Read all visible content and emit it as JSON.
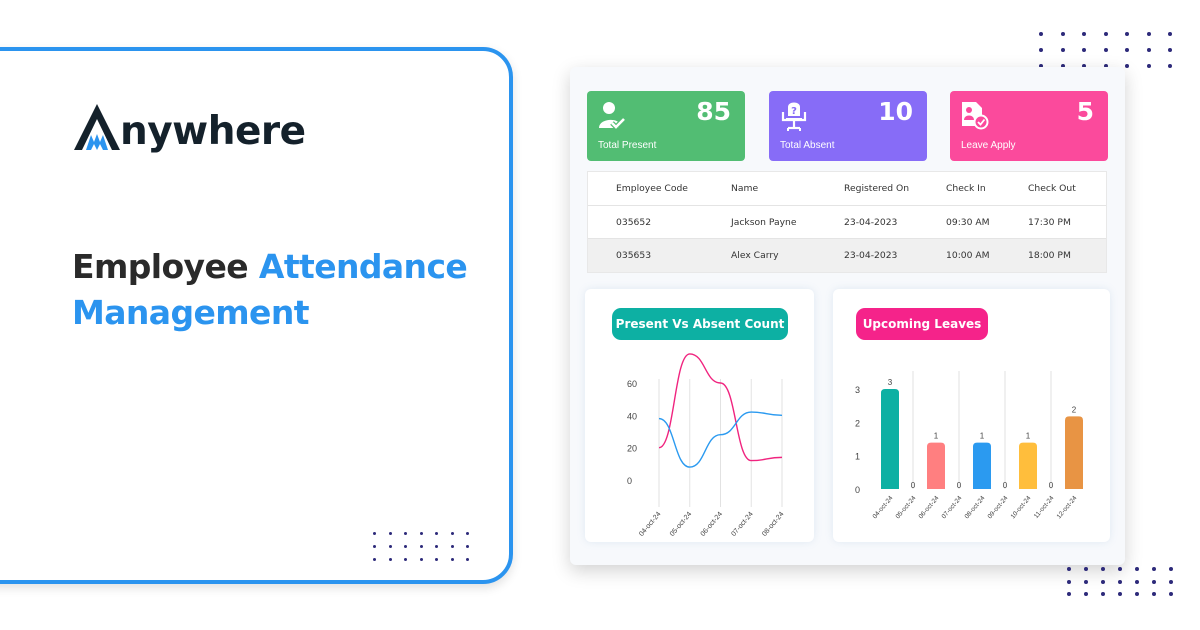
{
  "brand": {
    "logo_text": "nywhere",
    "logo_full": "Anywhere",
    "colors": {
      "primary_blue": "#2b94ef",
      "dark": "#14212b"
    }
  },
  "headline": {
    "part1": "Employee ",
    "part2": "Attendance",
    "part3": "Management"
  },
  "stats": [
    {
      "label": "Total Present",
      "value": "85",
      "icon": "user-check-icon",
      "color": "#52bd73"
    },
    {
      "label": "Total Absent",
      "value": "10",
      "icon": "empty-chair-question-icon",
      "color": "#876cf7"
    },
    {
      "label": "Leave Apply",
      "value": "5",
      "icon": "document-check-icon",
      "color": "#fb4a9c"
    }
  ],
  "table": {
    "headers": [
      "Employee Code",
      "Name",
      "Registered On",
      "Check In",
      "Check Out"
    ],
    "rows": [
      [
        "035652",
        "Jackson Payne",
        "23-04-2023",
        "09:30 AM",
        "17:30 PM"
      ],
      [
        "035653",
        "Alex Carry",
        "23-04-2023",
        "10:00 AM",
        "18:00 PM"
      ]
    ]
  },
  "chart_data": [
    {
      "type": "line",
      "title": "Present Vs Absent Count",
      "categories": [
        "04-oct-24",
        "05-oct-24",
        "06-oct-24",
        "07-oct-24",
        "08-oct-24"
      ],
      "series": [
        {
          "name": "Absent",
          "color": "#f0247f",
          "values": [
            20,
            78,
            60,
            12,
            14
          ]
        },
        {
          "name": "Present",
          "color": "#2b9af0",
          "values": [
            38,
            8,
            28,
            42,
            40
          ]
        }
      ],
      "yticks": [
        0,
        20,
        40,
        60
      ],
      "ylim": [
        0,
        60
      ],
      "grid": "vertical",
      "legend": "none"
    },
    {
      "type": "bar",
      "title": "Upcoming Leaves",
      "categories": [
        "04-oct-24",
        "05-oct-24",
        "06-oct-24",
        "07-oct-24",
        "08-oct-24",
        "09-oct-24",
        "10-oct-24",
        "11-oct-24",
        "12-oct-24"
      ],
      "values": [
        3,
        0,
        1,
        0,
        1,
        0,
        1,
        0,
        2
      ],
      "colors": [
        "#0db0a3",
        "#ff7f80",
        "#ff7f80",
        "#2b9af0",
        "#2b9af0",
        "#ffbe3c",
        "#ffbe3c",
        "#e89444",
        "#e89444"
      ],
      "yticks": [
        0,
        1,
        2,
        3
      ],
      "ylim": [
        0,
        3
      ],
      "data_labels": true,
      "grid": "vertical"
    }
  ]
}
